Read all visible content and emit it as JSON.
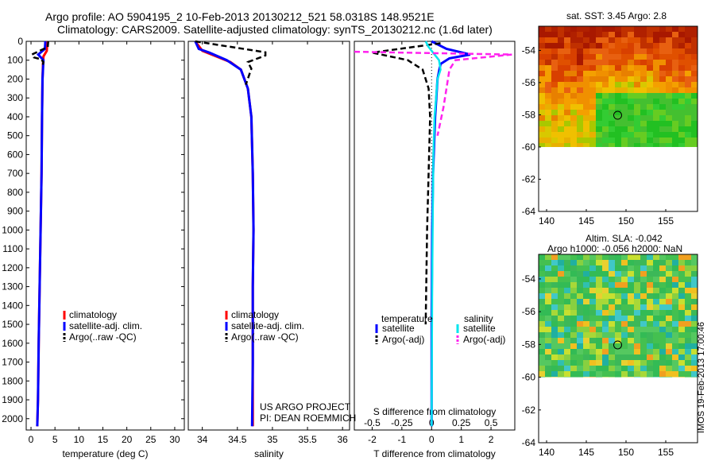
{
  "title": {
    "line1": "Argo profile: AO 5904195_2 10-Feb-2013 20130212_521 58.0318S 148.9521E",
    "line2": "Climatology: CARS2009. Satellite-adjusted climatology: synTS_20130212.nc (1.6d later)"
  },
  "stamp": "IMOS 19-Feb-2013 17:00:46",
  "colors": {
    "climatology": "#ff0000",
    "satellite": "#0000ff",
    "argo": "#000000",
    "satellite_salinity": "#00e5ee",
    "argo_salinity_adj": "#ff22ee"
  },
  "chart_data": [
    {
      "type": "line",
      "panel": "temperature",
      "xlabel": "temperature (deg C)",
      "ylabel": "",
      "xlim": [
        -1,
        32
      ],
      "ylim": [
        2060,
        0
      ],
      "y_reversed": true,
      "xticks": [
        0,
        5,
        10,
        15,
        20,
        25,
        30
      ],
      "yticks": [
        0,
        100,
        200,
        300,
        400,
        500,
        600,
        700,
        800,
        900,
        1000,
        1100,
        1200,
        1300,
        1400,
        1500,
        1600,
        1700,
        1800,
        1900,
        2000
      ],
      "legend": [
        "climatology",
        "satellite-adj. clim.",
        "Argo(..raw -QC)"
      ],
      "legend_position": "lower-center",
      "series": [
        {
          "name": "climatology",
          "color": "#ff0000",
          "x": [
            3.4,
            3.3,
            2.6,
            2.5,
            2.4,
            2.3,
            2.2,
            2.0,
            1.8,
            1.6,
            1.45,
            1.3
          ],
          "y": [
            0,
            50,
            80,
            120,
            200,
            400,
            700,
            1000,
            1300,
            1600,
            1900,
            2040
          ]
        },
        {
          "name": "satellite-adj. clim.",
          "color": "#0000ff",
          "x": [
            3.0,
            2.9,
            1.5,
            2.6,
            2.4,
            2.3,
            2.2,
            2.0,
            1.8,
            1.6,
            1.45,
            1.3
          ],
          "y": [
            0,
            40,
            70,
            100,
            200,
            400,
            700,
            1000,
            1300,
            1600,
            1900,
            2040
          ]
        },
        {
          "name": "Argo(..raw -QC)",
          "color": "#000000",
          "x": [
            3.6,
            3.5,
            0.2,
            0.6,
            2.1,
            2.6,
            2.4
          ],
          "y": [
            0,
            30,
            70,
            85,
            95,
            110,
            130
          ]
        }
      ]
    },
    {
      "type": "line",
      "panel": "salinity",
      "xlabel": "salinity",
      "xlim": [
        33.8,
        36.1
      ],
      "ylim": [
        2060,
        0
      ],
      "y_reversed": true,
      "xticks": [
        34,
        34.5,
        35,
        35.5,
        36
      ],
      "legend": [
        "climatology",
        "satellite-adj. clim.",
        "Argo(..raw -QC)"
      ],
      "legend_position": "lower-center",
      "annotations": [
        "US ARGO PROJECT",
        "PI: DEAN ROEMMICH"
      ],
      "series": [
        {
          "name": "climatology",
          "color": "#ff0000",
          "x": [
            33.9,
            34.0,
            34.2,
            34.4,
            34.55,
            34.65,
            34.7,
            34.72,
            34.73,
            34.72,
            34.72,
            34.72
          ],
          "y": [
            0,
            50,
            80,
            110,
            150,
            250,
            400,
            700,
            1000,
            1300,
            1700,
            2040
          ]
        },
        {
          "name": "satellite-adj. clim.",
          "color": "#0000ff",
          "x": [
            33.9,
            33.95,
            34.1,
            34.35,
            34.55,
            34.65,
            34.7,
            34.72,
            34.73,
            34.72,
            34.72,
            34.71
          ],
          "y": [
            0,
            40,
            60,
            100,
            150,
            250,
            400,
            700,
            1000,
            1300,
            1700,
            2040
          ]
        },
        {
          "name": "Argo(..raw -QC)",
          "color": "#000000",
          "x": [
            33.9,
            34.9,
            34.9,
            34.9,
            34.65,
            34.7,
            34.62
          ],
          "y": [
            0,
            58,
            65,
            75,
            110,
            145,
            230
          ]
        }
      ]
    },
    {
      "type": "line",
      "panel": "difference",
      "xlabel": "T difference from climatology",
      "x2label": "S difference from climatology",
      "xlim": [
        -2.6,
        2.8
      ],
      "ylim": [
        2060,
        0
      ],
      "y_reversed": true,
      "xticks": [
        -2,
        -1,
        0,
        1,
        2
      ],
      "x2ticks": [
        -0.5,
        -0.25,
        0,
        0.25,
        0.5
      ],
      "legend_headers": [
        "temperature",
        "salinity"
      ],
      "legend": [
        "satellite",
        "Argo(-adj)",
        "satellite",
        "Argo(-adj)"
      ],
      "legend_position": "lower-center",
      "series": [
        {
          "name": "satellite",
          "group": "temperature",
          "color": "#0000ff",
          "x": [
            0,
            0.5,
            1.3,
            0.6,
            0.3,
            0.2,
            0.12,
            0.05,
            0.02,
            0.0,
            0.0
          ],
          "y": [
            0,
            40,
            70,
            90,
            120,
            200,
            400,
            700,
            1000,
            1500,
            2040
          ]
        },
        {
          "name": "Argo(-adj)",
          "group": "temperature",
          "color": "#000000",
          "x": [
            0.3,
            -2.0,
            -0.8,
            -0.3,
            -0.1,
            -0.05,
            -0.1,
            -0.15,
            -0.2
          ],
          "y": [
            10,
            60,
            100,
            150,
            250,
            400,
            700,
            1000,
            1500
          ]
        },
        {
          "name": "satellite",
          "group": "salinity",
          "color": "#00e5ee",
          "x": [
            -0.2,
            -0.1,
            0.05,
            0.25,
            0.3,
            0.2,
            0.15,
            0.1,
            0.06,
            0.04,
            0.02,
            0.0
          ],
          "y": [
            0,
            30,
            60,
            100,
            150,
            200,
            300,
            400,
            600,
            900,
            1300,
            2040
          ]
        },
        {
          "name": "Argo(-adj)",
          "group": "salinity",
          "color": "#ff22ee",
          "x": [
            -2.6,
            2.7,
            0.8,
            0.6,
            0.5,
            0.4,
            0.2
          ],
          "y": [
            55,
            70,
            100,
            150,
            250,
            350,
            500
          ]
        }
      ]
    },
    {
      "type": "heatmap",
      "panel": "sst-map",
      "title": "sat. SST: 3.45 Argo: 2.8",
      "xlim": [
        139,
        159
      ],
      "ylim": [
        -64,
        -52.5
      ],
      "xticks": [
        140,
        145,
        150,
        155
      ],
      "yticks": [
        -54,
        -56,
        -58,
        -60,
        -62,
        -64
      ],
      "data_extent_lat": [
        -60,
        -52.5
      ],
      "marker": {
        "lon": 148.95,
        "lat": -58.03
      }
    },
    {
      "type": "heatmap",
      "panel": "sla-map",
      "title_line1": "Altim. SLA: -0.042",
      "title_line2": "Argo h1000: -0.056 h2000: NaN",
      "xlim": [
        139,
        159
      ],
      "ylim": [
        -64,
        -52.5
      ],
      "xticks": [
        140,
        145,
        150,
        155
      ],
      "yticks": [
        -54,
        -56,
        -58,
        -60,
        -62,
        -64
      ],
      "data_extent_lat": [
        -60,
        -52.5
      ],
      "marker": {
        "lon": 148.95,
        "lat": -58.03
      }
    }
  ]
}
